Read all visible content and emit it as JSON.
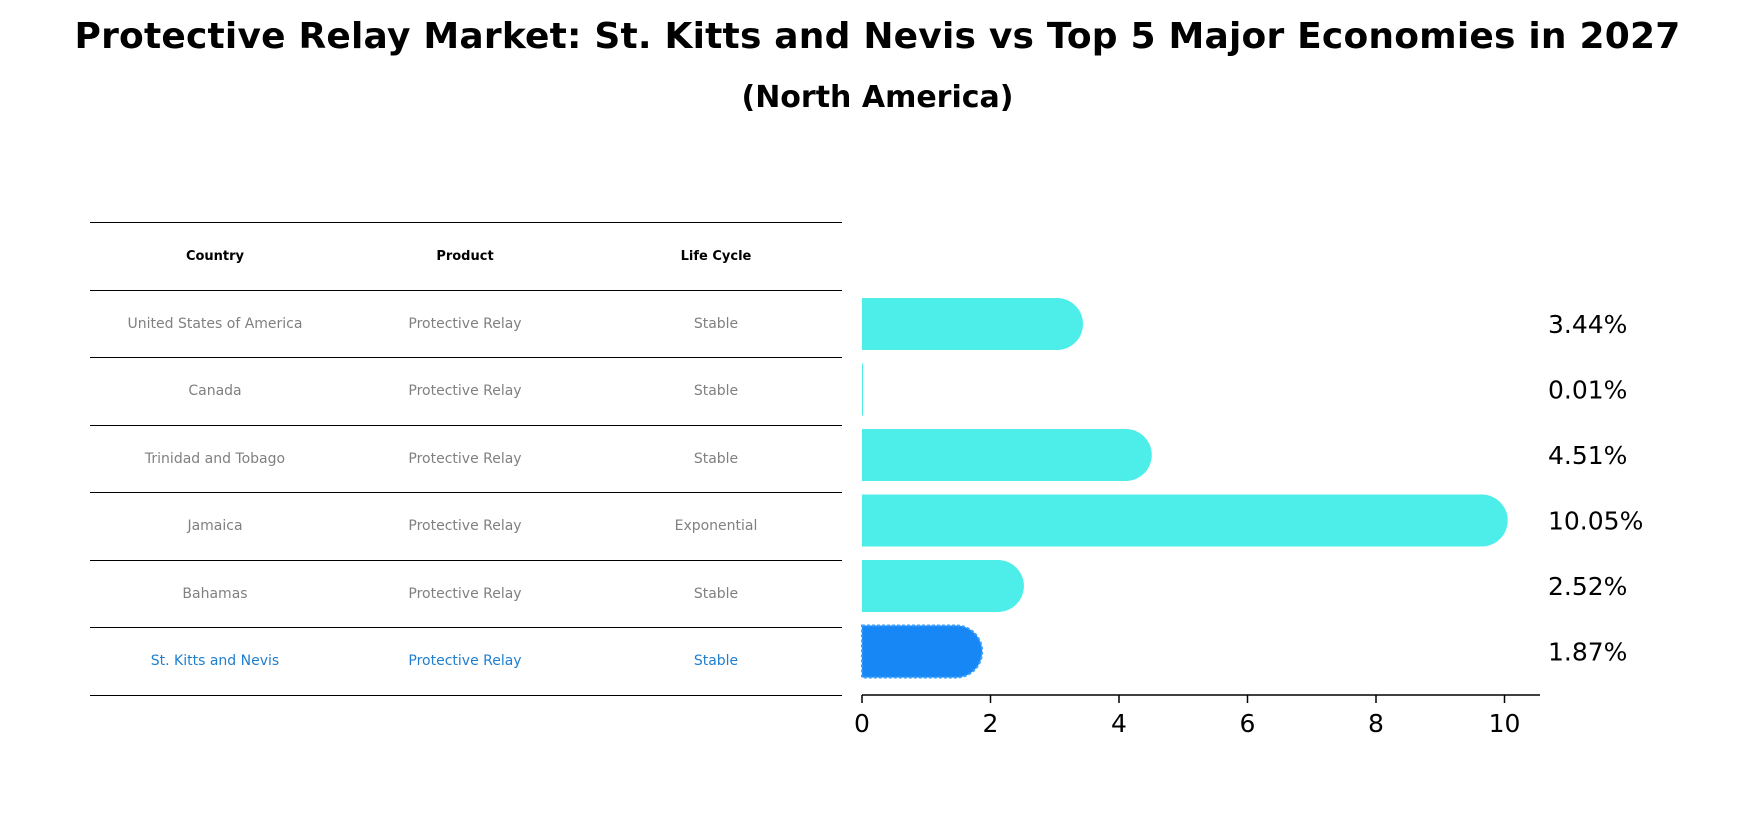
{
  "title": "Protective Relay Market: St. Kitts and Nevis vs Top 5 Major Economies in 2027",
  "subtitle": "(North America)",
  "table": {
    "headers": [
      "Country",
      "Product",
      "Life Cycle"
    ],
    "rows": [
      {
        "country": "United States of America",
        "product": "Protective Relay",
        "life_cycle": "Stable"
      },
      {
        "country": "Canada",
        "product": "Protective Relay",
        "life_cycle": "Stable"
      },
      {
        "country": "Trinidad and Tobago",
        "product": "Protective Relay",
        "life_cycle": "Stable"
      },
      {
        "country": "Jamaica",
        "product": "Protective Relay",
        "life_cycle": "Exponential"
      },
      {
        "country": "Bahamas",
        "product": "Protective Relay",
        "life_cycle": "Stable"
      },
      {
        "country": "St. Kitts and Nevis",
        "product": "Protective Relay",
        "life_cycle": "Stable"
      }
    ]
  },
  "chart_data": {
    "type": "bar",
    "orientation": "horizontal",
    "title": "Protective Relay Market: St. Kitts and Nevis vs Top 5 Major Economies in 2027",
    "subtitle": "(North America)",
    "categories": [
      "United States of America",
      "Canada",
      "Trinidad and Tobago",
      "Jamaica",
      "Bahamas",
      "St. Kitts and Nevis"
    ],
    "values": [
      3.44,
      0.01,
      4.51,
      10.05,
      2.52,
      1.87
    ],
    "value_labels": [
      "3.44%",
      "0.01%",
      "4.51%",
      "10.05%",
      "2.52%",
      "1.87%"
    ],
    "highlight_index": 5,
    "xlim": [
      0,
      10.55
    ],
    "xticks": [
      0,
      2,
      4,
      6,
      8,
      10
    ],
    "xlabel": "",
    "ylabel": "",
    "colors": {
      "default": "#4deeea",
      "highlight": "#1787f5"
    }
  }
}
